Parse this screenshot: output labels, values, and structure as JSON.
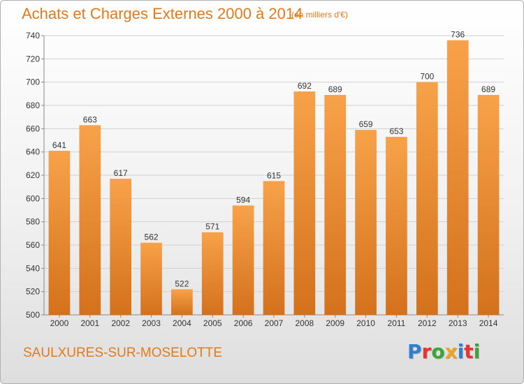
{
  "page": {
    "title": "Achats et Charges Externes 2000 à 2014",
    "subtitle": "(en milliers d'€)",
    "commune": "SAULXURES-SUR-MOSELOTTE",
    "logo_text": "Proxiti",
    "logo_colors": [
      "#2f7fd0",
      "#e8342f",
      "#3aa63a",
      "#f2a21c",
      "#2f7fd0",
      "#e8342f",
      "#3aa63a"
    ]
  },
  "colors": {
    "accent": "#e07a1a",
    "bar_top": "#f7a24a",
    "bar_bottom": "#d4711c"
  },
  "chart_data": {
    "type": "bar",
    "categories": [
      "2000",
      "2001",
      "2002",
      "2003",
      "2004",
      "2005",
      "2006",
      "2007",
      "2008",
      "2009",
      "2010",
      "2011",
      "2012",
      "2013",
      "2014"
    ],
    "values": [
      641,
      663,
      617,
      562,
      522,
      571,
      594,
      615,
      692,
      689,
      659,
      653,
      700,
      736,
      689
    ],
    "title": "Achats et Charges Externes 2000 à 2014",
    "xlabel": "",
    "ylabel": "",
    "ylim": [
      500,
      740
    ],
    "yticks": [
      500,
      520,
      540,
      560,
      580,
      600,
      620,
      640,
      660,
      680,
      700,
      720,
      740
    ],
    "grid": true,
    "legend": "none"
  }
}
